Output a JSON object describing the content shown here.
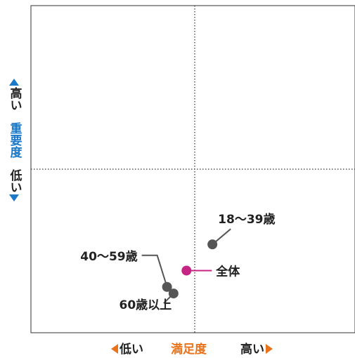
{
  "chart_data": {
    "type": "scatter",
    "xlabel": "満足度",
    "ylabel": "重要度",
    "x_low": "低い",
    "x_high": "高い",
    "y_low": "低い",
    "y_high": "高い",
    "xlim": [
      0,
      100
    ],
    "ylim": [
      0,
      100
    ],
    "quadrant_divider": {
      "x": 50,
      "y": 50
    },
    "grid": false,
    "points": [
      {
        "label": "18〜39歳",
        "x": 56,
        "y": 27,
        "color": "#555555"
      },
      {
        "label": "全体",
        "x": 48,
        "y": 19,
        "color": "#c62482"
      },
      {
        "label": "40〜59歳",
        "x": 42,
        "y": 14,
        "color": "#555555"
      },
      {
        "label": "60歳以上",
        "x": 44,
        "y": 12,
        "color": "#555555"
      }
    ]
  },
  "colors": {
    "x_axis_accent": "#e8731a",
    "y_axis_accent": "#1c79c7",
    "point_default": "#555555",
    "point_total": "#c62482"
  }
}
